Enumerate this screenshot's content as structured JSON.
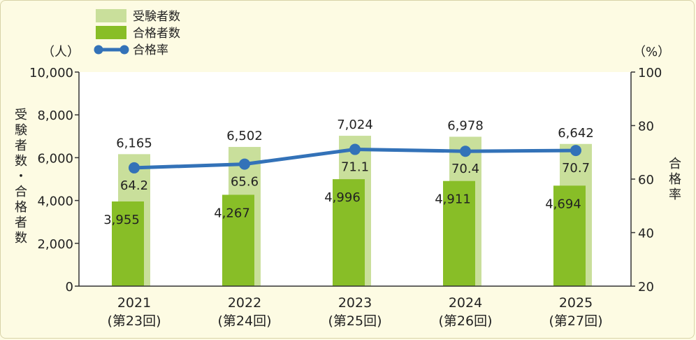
{
  "chart_data": {
    "type": "bar+line",
    "categories": [
      "2021",
      "2022",
      "2023",
      "2024",
      "2025"
    ],
    "category_sublabels": [
      "(第23回)",
      "(第24回)",
      "(第25回)",
      "(第26回)",
      "(第27回)"
    ],
    "series": [
      {
        "name": "受験者数",
        "type": "bar",
        "axis": "left",
        "color": "#c9df9b",
        "values": [
          6165,
          6502,
          7024,
          6978,
          6642
        ]
      },
      {
        "name": "合格者数",
        "type": "bar",
        "axis": "left",
        "color": "#88be27",
        "values": [
          3955,
          4267,
          4996,
          4911,
          4694
        ]
      },
      {
        "name": "合格率",
        "type": "line",
        "axis": "right",
        "color": "#3372b8",
        "values": [
          64.2,
          65.6,
          71.1,
          70.4,
          70.7
        ]
      }
    ],
    "value_labels": {
      "applicants": [
        "6,165",
        "6,502",
        "7,024",
        "6,978",
        "6,642"
      ],
      "passers": [
        "3,955",
        "4,267",
        "4,996",
        "4,911",
        "4,694"
      ],
      "rate": [
        "64.2",
        "65.6",
        "71.1",
        "70.4",
        "70.7"
      ]
    },
    "left_axis": {
      "unit": "（人）",
      "title": "受験者数・合格者数",
      "ylim": [
        0,
        10000
      ],
      "ticks": [
        0,
        2000,
        4000,
        6000,
        8000,
        10000
      ],
      "tick_labels": [
        "0",
        "2,000",
        "4,000",
        "6,000",
        "8,000",
        "10,000"
      ]
    },
    "right_axis": {
      "unit": "（%）",
      "title": "合格率",
      "ylim": [
        20,
        100
      ],
      "ticks": [
        20,
        40,
        60,
        80,
        100
      ],
      "tick_labels": [
        "20",
        "40",
        "60",
        "80",
        "100"
      ]
    },
    "legend_position": "top-left",
    "grid": false,
    "plot_background": "#ffffff"
  }
}
